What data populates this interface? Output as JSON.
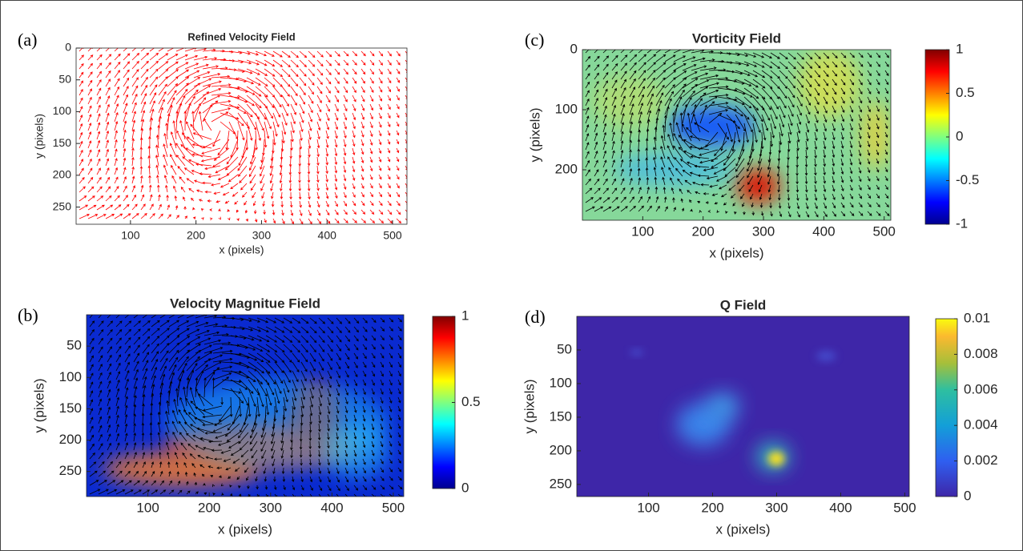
{
  "chart_data": [
    {
      "type": "vector_field",
      "panel_label": "(a)",
      "title": "Refined Velocity Field",
      "xlabel": "x (pixels)",
      "ylabel": "y (pixels)",
      "xlim": [
        17,
        522
      ],
      "ylim": [
        0,
        277
      ],
      "y_reversed": true,
      "xticks": [
        100,
        200,
        300,
        400,
        500
      ],
      "yticks": [
        0,
        50,
        100,
        150,
        200,
        250
      ],
      "background": "#ffffff",
      "arrow_color": "#ff0000"
    },
    {
      "type": "vector_field",
      "panel_label": "(b)",
      "title": "Velocity Magnitue Field",
      "xlabel": "x (pixels)",
      "ylabel": "y (pixels)",
      "xlim": [
        0,
        517
      ],
      "ylim": [
        0,
        290
      ],
      "y_reversed": true,
      "xticks": [
        100,
        200,
        300,
        400,
        500
      ],
      "yticks": [
        50,
        100,
        150,
        200,
        250
      ],
      "background": "#0a2ad0",
      "arrow_color": "#000000",
      "colorbar": {
        "colormap": "jet",
        "lim": [
          0,
          1
        ],
        "ticks": [
          0,
          0.5,
          1
        ]
      }
    },
    {
      "type": "vector_field",
      "panel_label": "(c)",
      "title": "Vorticity Field",
      "xlabel": "x (pixels)",
      "ylabel": "y (pixels)",
      "xlim": [
        0,
        511
      ],
      "ylim": [
        0,
        284
      ],
      "y_reversed": true,
      "xticks": [
        100,
        200,
        300,
        400,
        500
      ],
      "yticks": [
        0,
        100,
        200
      ],
      "background": "#86d89a",
      "arrow_color": "#000000",
      "colorbar": {
        "colormap": "jet",
        "lim": [
          -1,
          1
        ],
        "ticks": [
          -1,
          -0.5,
          0,
          0.5,
          1
        ]
      }
    },
    {
      "type": "scalar_field",
      "panel_label": "(d)",
      "title": "Q Field",
      "xlabel": "x (pixels)",
      "ylabel": "y (pixels)",
      "xlim": [
        -12,
        507
      ],
      "ylim": [
        0,
        268
      ],
      "y_reversed": true,
      "xticks": [
        100,
        200,
        300,
        400,
        500
      ],
      "yticks": [
        50,
        100,
        150,
        200,
        250
      ],
      "background": "#3e26a8",
      "colorbar": {
        "colormap": "parula",
        "lim": [
          0,
          0.01
        ],
        "ticks": [
          0,
          0.002,
          0.004,
          0.006,
          0.008,
          0.01
        ]
      }
    }
  ]
}
